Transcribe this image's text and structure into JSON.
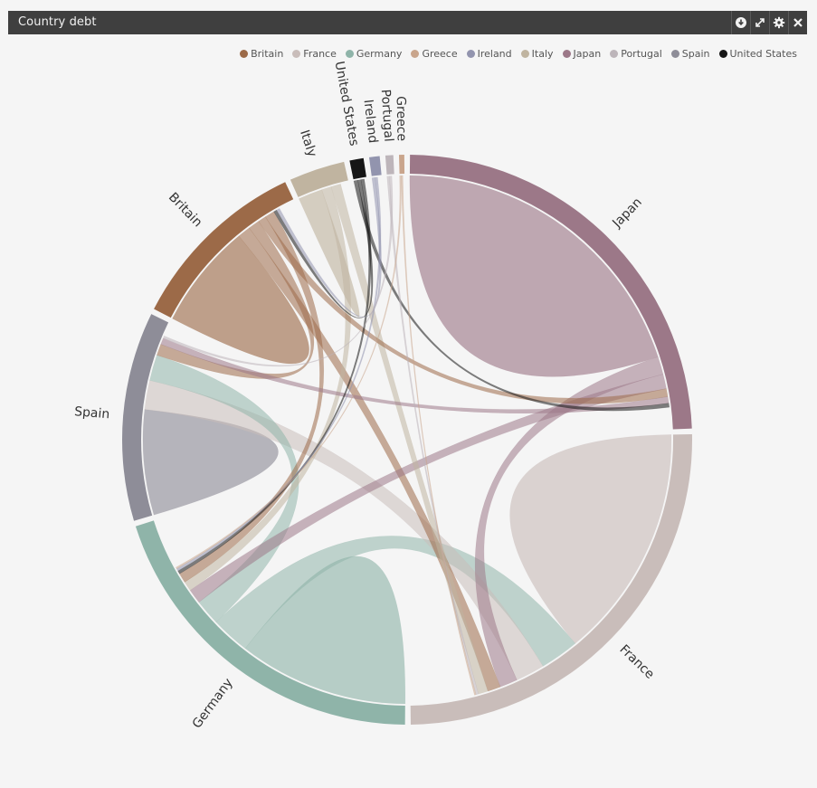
{
  "window": {
    "title": "Country debt"
  },
  "toolbar": [
    {
      "name": "download-icon"
    },
    {
      "name": "expand-icon"
    },
    {
      "name": "gear-icon"
    },
    {
      "name": "close-icon"
    }
  ],
  "chart_data": {
    "type": "chord",
    "title": "Country debt",
    "legend_position": "top-right",
    "legend": [
      "Britain",
      "France",
      "Germany",
      "Greece",
      "Ireland",
      "Italy",
      "Japan",
      "Portugal",
      "Spain",
      "United States"
    ],
    "groups": [
      {
        "name": "Japan",
        "color": "#9c7888",
        "value": 24.5
      },
      {
        "name": "France",
        "color": "#c9bdba",
        "value": 25.4
      },
      {
        "name": "Germany",
        "color": "#8fb4a9",
        "value": 20.2
      },
      {
        "name": "Spain",
        "color": "#8e8d98",
        "value": 12.0
      },
      {
        "name": "Britain",
        "color": "#9c6a48",
        "value": 10.5
      },
      {
        "name": "Italy",
        "color": "#c0b4a0",
        "value": 3.2
      },
      {
        "name": "United States",
        "color": "#161616",
        "value": 0.8
      },
      {
        "name": "Ireland",
        "color": "#9294ae",
        "value": 0.6
      },
      {
        "name": "Portugal",
        "color": "#bdb5ba",
        "value": 0.45
      },
      {
        "name": "Greece",
        "color": "#c9a58c",
        "value": 0.3
      }
    ],
    "chords": [
      {
        "from": "Japan",
        "to": "Japan",
        "value": 20.0
      },
      {
        "from": "France",
        "to": "France",
        "value": 14.5
      },
      {
        "from": "Germany",
        "to": "Germany",
        "value": 10.5
      },
      {
        "from": "Spain",
        "to": "Spain",
        "value": 6.5
      },
      {
        "from": "Britain",
        "to": "Britain",
        "value": 6.5
      },
      {
        "from": "Italy",
        "to": "Italy",
        "value": 1.5
      },
      {
        "from": "Germany",
        "to": "France",
        "value": 2.4
      },
      {
        "from": "France",
        "to": "Spain",
        "value": 1.8
      },
      {
        "from": "Germany",
        "to": "Spain",
        "value": 1.6
      },
      {
        "from": "Japan",
        "to": "France",
        "value": 1.1
      },
      {
        "from": "Britain",
        "to": "France",
        "value": 0.8
      },
      {
        "from": "Japan",
        "to": "Germany",
        "value": 0.9
      },
      {
        "from": "Britain",
        "to": "Spain",
        "value": 0.7
      },
      {
        "from": "Italy",
        "to": "Germany",
        "value": 0.6
      },
      {
        "from": "Italy",
        "to": "France",
        "value": 0.6
      },
      {
        "from": "Britain",
        "to": "Japan",
        "value": 0.5
      },
      {
        "from": "Britain",
        "to": "Germany",
        "value": 0.6
      },
      {
        "from": "Japan",
        "to": "Spain",
        "value": 0.4
      },
      {
        "from": "United States",
        "to": "Japan",
        "value": 0.25
      },
      {
        "from": "United States",
        "to": "Britain",
        "value": 0.2
      },
      {
        "from": "United States",
        "to": "Germany",
        "value": 0.2
      },
      {
        "from": "Ireland",
        "to": "Britain",
        "value": 0.2
      },
      {
        "from": "Ireland",
        "to": "Germany",
        "value": 0.15
      },
      {
        "from": "Portugal",
        "to": "France",
        "value": 0.15
      },
      {
        "from": "Portugal",
        "to": "Spain",
        "value": 0.15
      },
      {
        "from": "Greece",
        "to": "Germany",
        "value": 0.1
      },
      {
        "from": "Greece",
        "to": "France",
        "value": 0.1
      }
    ]
  }
}
